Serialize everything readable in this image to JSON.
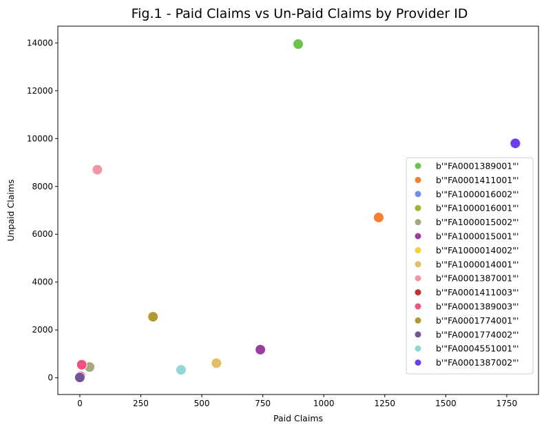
{
  "chart_data": {
    "type": "scatter",
    "title": "Fig.1 - Paid Claims vs Un-Paid Claims by Provider ID",
    "xlabel": "Paid Claims",
    "ylabel": "Unpaid Claims",
    "xlim": [
      -90,
      1880
    ],
    "ylim": [
      -700,
      14700
    ],
    "xticks": [
      0,
      250,
      500,
      750,
      1000,
      1250,
      1500,
      1750
    ],
    "yticks": [
      0,
      2000,
      4000,
      6000,
      8000,
      10000,
      12000,
      14000
    ],
    "grid": false,
    "legend_position": "center-right",
    "series": [
      {
        "name": "b'\"FA0001389001\"'",
        "color": "#6cc24a",
        "points": [
          {
            "x": 895,
            "y": 13950
          }
        ]
      },
      {
        "name": "b'\"FA0001411001\"'",
        "color": "#f47f2e",
        "points": [
          {
            "x": 1225,
            "y": 6700
          }
        ]
      },
      {
        "name": "b'\"FA1000016002\"'",
        "color": "#6d8ef0",
        "points": [
          {
            "x": 2,
            "y": 10
          }
        ]
      },
      {
        "name": "b'\"FA1000016001\"'",
        "color": "#9db92b",
        "points": [
          {
            "x": 2,
            "y": 20
          }
        ]
      },
      {
        "name": "b'\"FA1000015002\"'",
        "color": "#a7a67f",
        "points": [
          {
            "x": 40,
            "y": 450
          }
        ]
      },
      {
        "name": "b'\"FA1000015001\"'",
        "color": "#9b3ea4",
        "points": [
          {
            "x": 740,
            "y": 1175
          }
        ]
      },
      {
        "name": "b'\"FA1000014002\"'",
        "color": "#f4d13b",
        "points": [
          {
            "x": 2,
            "y": 30
          }
        ]
      },
      {
        "name": "b'\"FA1000014001\"'",
        "color": "#e0bf68",
        "points": [
          {
            "x": 560,
            "y": 610
          }
        ]
      },
      {
        "name": "b'\"FA0001387001\"'",
        "color": "#f196a7",
        "points": [
          {
            "x": 72,
            "y": 8700
          }
        ]
      },
      {
        "name": "b'\"FA0001411003\"'",
        "color": "#c0322f",
        "points": [
          {
            "x": 3,
            "y": 60
          }
        ]
      },
      {
        "name": "b'\"FA0001389003\"'",
        "color": "#f2517f",
        "points": [
          {
            "x": 8,
            "y": 545
          }
        ]
      },
      {
        "name": "b'\"FA0001774001\"'",
        "color": "#b19a33",
        "points": [
          {
            "x": 300,
            "y": 2550
          }
        ]
      },
      {
        "name": "b'\"FA0001774002\"'",
        "color": "#735496",
        "points": [
          {
            "x": 0,
            "y": 15
          }
        ]
      },
      {
        "name": "b'\"FA0004551001\"'",
        "color": "#94d6d6",
        "points": [
          {
            "x": 415,
            "y": 330
          }
        ]
      },
      {
        "name": "b'\"FA0001387002\"'",
        "color": "#6b3ef2",
        "points": [
          {
            "x": 1785,
            "y": 9800
          }
        ]
      }
    ]
  }
}
